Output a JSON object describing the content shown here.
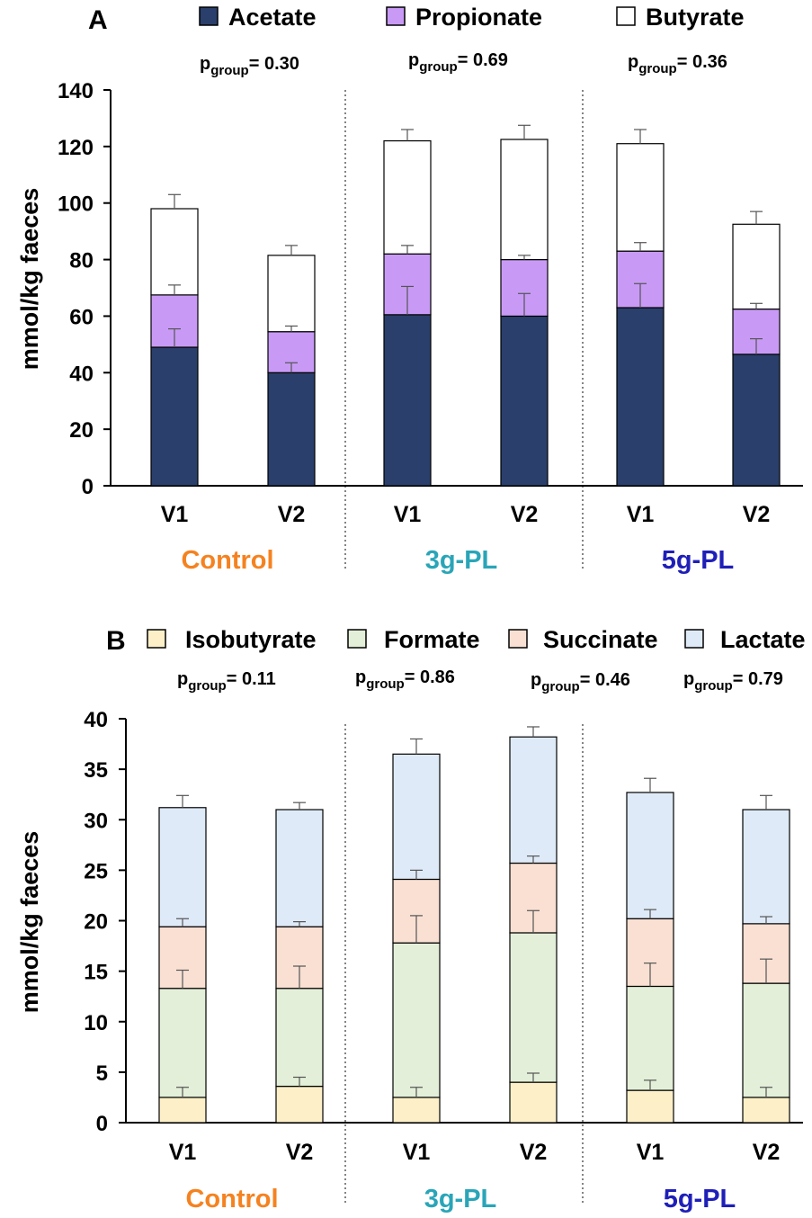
{
  "chart_data": [
    {
      "type": "bar",
      "stacked": true,
      "panel": "A",
      "ylabel": "mmol/kg faeces",
      "ylim": [
        0,
        140
      ],
      "yticks": [
        0,
        20,
        40,
        60,
        80,
        100,
        120,
        140
      ],
      "categories": [
        "V1",
        "V2",
        "V1",
        "V2",
        "V1",
        "V2"
      ],
      "groups": [
        {
          "name": "Control",
          "color": "#f58220"
        },
        {
          "name": "3g-PL",
          "color": "#2aa5b8"
        },
        {
          "name": "5g-PL",
          "color": "#1f1fb8"
        }
      ],
      "series": [
        {
          "name": "Acetate",
          "color": "#2a3f6b",
          "values": [
            49,
            40,
            60.5,
            60,
            63,
            46.5
          ],
          "errors": [
            6.5,
            3.5,
            10,
            8,
            8.5,
            5.5
          ]
        },
        {
          "name": "Propionate",
          "color": "#c89af5",
          "values": [
            18.5,
            14.5,
            21.5,
            20,
            20,
            16
          ],
          "errors": [
            3.5,
            2,
            3,
            1.5,
            3,
            2
          ]
        },
        {
          "name": "Butyrate",
          "color": "#ffffff",
          "values": [
            30.5,
            27,
            40,
            42.5,
            38,
            30
          ],
          "errors": [
            5,
            3.5,
            4,
            5,
            5,
            4.5
          ]
        }
      ],
      "pvalues": [
        {
          "label": "p",
          "sub": "group",
          "text": "= 0.30"
        },
        {
          "label": "p",
          "sub": "group",
          "text": "= 0.69"
        },
        {
          "label": "p",
          "sub": "group",
          "text": "= 0.36"
        }
      ],
      "legend_position": "top"
    },
    {
      "type": "bar",
      "stacked": true,
      "panel": "B",
      "ylabel": "mmol/kg faeces",
      "ylim": [
        0,
        40
      ],
      "yticks": [
        0,
        5,
        10,
        15,
        20,
        25,
        30,
        35,
        40
      ],
      "categories": [
        "V1",
        "V2",
        "V1",
        "V2",
        "V1",
        "V2"
      ],
      "groups": [
        {
          "name": "Control",
          "color": "#f58220"
        },
        {
          "name": "3g-PL",
          "color": "#2aa5b8"
        },
        {
          "name": "5g-PL",
          "color": "#1f1fb8"
        }
      ],
      "series": [
        {
          "name": "Isobutyrate",
          "color": "#fdf0c8",
          "values": [
            2.5,
            3.6,
            2.5,
            4,
            3.2,
            2.5
          ],
          "errors": [
            1,
            0.9,
            1,
            0.9,
            1,
            1
          ]
        },
        {
          "name": "Formate",
          "color": "#e3efd8",
          "values": [
            10.8,
            9.7,
            15.3,
            14.8,
            10.3,
            11.3
          ],
          "errors": [
            1.8,
            2.2,
            2.7,
            2.2,
            2.3,
            2.4
          ]
        },
        {
          "name": "Succinate",
          "color": "#f9e0d3",
          "values": [
            6.1,
            6.1,
            6.3,
            6.9,
            6.7,
            5.9
          ],
          "errors": [
            0.8,
            0.5,
            0.9,
            0.7,
            0.9,
            0.7
          ]
        },
        {
          "name": "Lactate",
          "color": "#deeaf7",
          "values": [
            11.8,
            11.6,
            12.4,
            12.5,
            12.5,
            11.3
          ],
          "errors": [
            1.2,
            0.7,
            1.5,
            1,
            1.4,
            1.4
          ]
        }
      ],
      "pvalues": [
        {
          "label": "p",
          "sub": "group",
          "text": "= 0.11"
        },
        {
          "label": "p",
          "sub": "group",
          "text": "= 0.86"
        },
        {
          "label": "p",
          "sub": "group",
          "text": "= 0.46"
        },
        {
          "label": "p",
          "sub": "group",
          "text": "= 0.79"
        }
      ],
      "legend_position": "top"
    }
  ]
}
